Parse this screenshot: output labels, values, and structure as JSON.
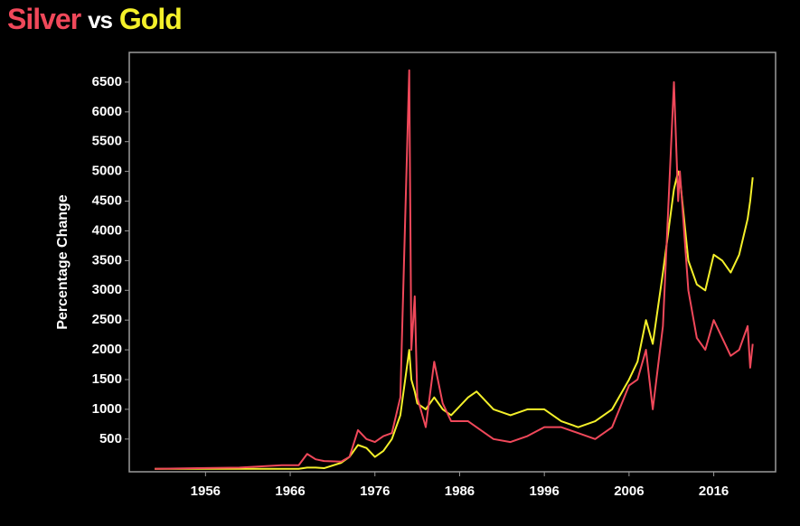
{
  "chart_data": {
    "type": "line",
    "title_joiner": "vs",
    "y_label": "Percentage Change",
    "x": [
      1950,
      1955,
      1960,
      1965,
      1967,
      1968,
      1969,
      1970,
      1972,
      1973,
      1974,
      1975,
      1976,
      1977,
      1978,
      1979,
      1980.05,
      1980.3,
      1980.7,
      1981,
      1982,
      1983,
      1984,
      1985,
      1987,
      1988,
      1990,
      1992,
      1994,
      1996,
      1998,
      2000,
      2002,
      2004,
      2006,
      2007,
      2008,
      2008.8,
      2010,
      2011.3,
      2011.8,
      2012,
      2013,
      2014,
      2015,
      2016,
      2017,
      2018,
      2019,
      2020,
      2020.3,
      2020.6
    ],
    "series": [
      {
        "name": "Silver",
        "color": "#f0485a",
        "values": [
          0,
          10,
          20,
          60,
          60,
          250,
          160,
          130,
          120,
          200,
          650,
          500,
          450,
          550,
          600,
          1200,
          6700,
          2000,
          2900,
          1200,
          700,
          1800,
          1100,
          800,
          800,
          700,
          500,
          450,
          550,
          700,
          700,
          600,
          500,
          700,
          1400,
          1500,
          2000,
          1000,
          2400,
          6500,
          4500,
          5000,
          3000,
          2200,
          2000,
          2500,
          2200,
          1900,
          2000,
          2400,
          1700,
          2100
        ]
      },
      {
        "name": "Gold",
        "color": "#f4f02a",
        "values": [
          0,
          0,
          0,
          0,
          0,
          20,
          20,
          10,
          100,
          200,
          400,
          350,
          200,
          300,
          500,
          900,
          2000,
          1500,
          1300,
          1100,
          1000,
          1200,
          1000,
          900,
          1200,
          1300,
          1000,
          900,
          1000,
          1000,
          800,
          700,
          800,
          1000,
          1500,
          1800,
          2500,
          2100,
          3300,
          4700,
          5000,
          4900,
          3500,
          3100,
          3000,
          3600,
          3500,
          3300,
          3600,
          4200,
          4500,
          4900
        ]
      }
    ],
    "xlim": [
      1947,
      2023.3
    ],
    "xticks": [
      1956,
      1966,
      1976,
      1986,
      1996,
      2006,
      2016
    ],
    "ylim": [
      -50,
      7000
    ],
    "yticks": [
      500,
      1000,
      1500,
      2000,
      2500,
      3000,
      3500,
      4000,
      4500,
      5000,
      5500,
      6000,
      6500
    ]
  }
}
